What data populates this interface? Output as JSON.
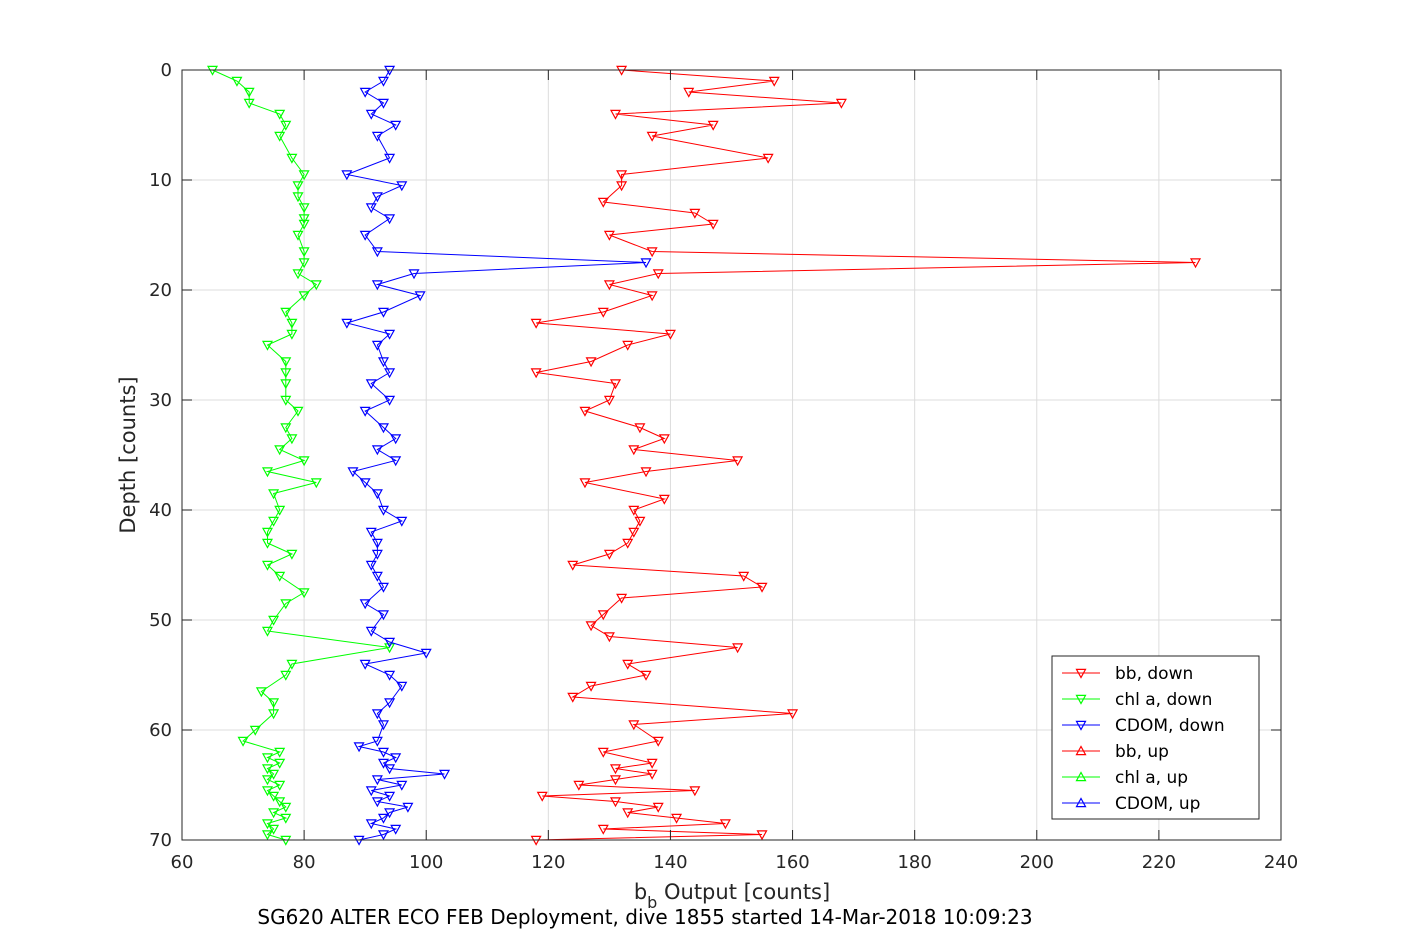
{
  "figure": {
    "subtitle": "SG620 ALTER ECO FEB Deployment, dive 1855 started 14-Mar-2018 10:09:23"
  },
  "chart_data": {
    "type": "line",
    "xlabel_main": "b",
    "xlabel_sub": "b",
    "xlabel_rest": " Output [counts]",
    "ylabel": "Depth [counts]",
    "xlim": [
      60,
      240
    ],
    "ylim": [
      0,
      70
    ],
    "y_reversed": true,
    "grid": true,
    "legend_position": "bottom-right",
    "x_ticks": [
      "60",
      "80",
      "100",
      "120",
      "140",
      "160",
      "180",
      "200",
      "220",
      "240"
    ],
    "y_ticks": [
      "0",
      "10",
      "20",
      "30",
      "40",
      "50",
      "60",
      "70"
    ],
    "series": [
      {
        "name": "bb, down",
        "color": "#ff0000",
        "marker": "triangle-down",
        "points": [
          [
            132,
            0
          ],
          [
            157,
            1
          ],
          [
            143,
            2
          ],
          [
            168,
            3
          ],
          [
            131,
            4
          ],
          [
            147,
            5
          ],
          [
            137,
            6
          ],
          [
            156,
            8
          ],
          [
            132,
            9.5
          ],
          [
            132,
            10.5
          ],
          [
            129,
            12
          ],
          [
            144,
            13
          ],
          [
            147,
            14
          ],
          [
            130,
            15
          ],
          [
            137,
            16.5
          ],
          [
            226,
            17.5
          ],
          [
            138,
            18.5
          ],
          [
            130,
            19.5
          ],
          [
            137,
            20.5
          ],
          [
            129,
            22
          ],
          [
            118,
            23
          ],
          [
            140,
            24
          ],
          [
            133,
            25
          ],
          [
            127,
            26.5
          ],
          [
            118,
            27.5
          ],
          [
            131,
            28.5
          ],
          [
            130,
            30
          ],
          [
            126,
            31
          ],
          [
            135,
            32.5
          ],
          [
            139,
            33.5
          ],
          [
            134,
            34.5
          ],
          [
            151,
            35.5
          ],
          [
            136,
            36.5
          ],
          [
            126,
            37.5
          ],
          [
            139,
            39
          ],
          [
            134,
            40
          ],
          [
            135,
            41
          ],
          [
            134,
            42
          ],
          [
            133,
            43
          ],
          [
            130,
            44
          ],
          [
            124,
            45
          ],
          [
            152,
            46
          ],
          [
            155,
            47
          ],
          [
            132,
            48
          ],
          [
            129,
            49.5
          ],
          [
            127,
            50.5
          ],
          [
            130,
            51.5
          ],
          [
            151,
            52.5
          ],
          [
            133,
            54
          ],
          [
            136,
            55
          ],
          [
            127,
            56
          ],
          [
            124,
            57
          ],
          [
            160,
            58.5
          ],
          [
            134,
            59.5
          ],
          [
            138,
            61
          ],
          [
            129,
            62
          ],
          [
            137,
            63
          ],
          [
            131,
            63.5
          ],
          [
            137,
            64
          ],
          [
            131,
            64.5
          ],
          [
            125,
            65
          ],
          [
            144,
            65.5
          ],
          [
            119,
            66
          ],
          [
            131,
            66.5
          ],
          [
            138,
            67
          ],
          [
            133,
            67.5
          ],
          [
            141,
            68
          ],
          [
            149,
            68.5
          ],
          [
            129,
            69
          ],
          [
            155,
            69.5
          ],
          [
            118,
            70
          ]
        ]
      },
      {
        "name": "chl a, down",
        "color": "#00ff00",
        "marker": "triangle-down",
        "points": [
          [
            65,
            0
          ],
          [
            69,
            1
          ],
          [
            71,
            2
          ],
          [
            71,
            3
          ],
          [
            76,
            4
          ],
          [
            77,
            5
          ],
          [
            76,
            6
          ],
          [
            78,
            8
          ],
          [
            80,
            9.5
          ],
          [
            79,
            10.5
          ],
          [
            79,
            11.5
          ],
          [
            80,
            12.5
          ],
          [
            80,
            13.5
          ],
          [
            80,
            14
          ],
          [
            79,
            15
          ],
          [
            80,
            16.5
          ],
          [
            80,
            17.5
          ],
          [
            79,
            18.5
          ],
          [
            82,
            19.5
          ],
          [
            80,
            20.5
          ],
          [
            77,
            22
          ],
          [
            78,
            23
          ],
          [
            78,
            24
          ],
          [
            74,
            25
          ],
          [
            77,
            26.5
          ],
          [
            77,
            27.5
          ],
          [
            77,
            28.5
          ],
          [
            77,
            30
          ],
          [
            79,
            31
          ],
          [
            77,
            32.5
          ],
          [
            78,
            33.5
          ],
          [
            76,
            34.5
          ],
          [
            80,
            35.5
          ],
          [
            74,
            36.5
          ],
          [
            82,
            37.5
          ],
          [
            75,
            38.5
          ],
          [
            76,
            40
          ],
          [
            75,
            41
          ],
          [
            74,
            42
          ],
          [
            74,
            43
          ],
          [
            78,
            44
          ],
          [
            74,
            45
          ],
          [
            76,
            46
          ],
          [
            80,
            47.5
          ],
          [
            77,
            48.5
          ],
          [
            75,
            50
          ],
          [
            74,
            51
          ],
          [
            94,
            52.5
          ],
          [
            78,
            54
          ],
          [
            77,
            55
          ],
          [
            73,
            56.5
          ],
          [
            75,
            57.5
          ],
          [
            75,
            58.5
          ],
          [
            72,
            60
          ],
          [
            70,
            61
          ],
          [
            76,
            62
          ],
          [
            74,
            62.5
          ],
          [
            76,
            63
          ],
          [
            74,
            63.5
          ],
          [
            75,
            64
          ],
          [
            74,
            64.5
          ],
          [
            76,
            65
          ],
          [
            74,
            65.5
          ],
          [
            75,
            66
          ],
          [
            76,
            66.5
          ],
          [
            77,
            67
          ],
          [
            75,
            67.5
          ],
          [
            77,
            68
          ],
          [
            74,
            68.5
          ],
          [
            75,
            69
          ],
          [
            74,
            69.5
          ],
          [
            77,
            70
          ]
        ]
      },
      {
        "name": "CDOM, down",
        "color": "#0000ff",
        "marker": "triangle-down",
        "points": [
          [
            94,
            0
          ],
          [
            93,
            1
          ],
          [
            90,
            2
          ],
          [
            93,
            3
          ],
          [
            91,
            4
          ],
          [
            95,
            5
          ],
          [
            92,
            6
          ],
          [
            94,
            8
          ],
          [
            87,
            9.5
          ],
          [
            96,
            10.5
          ],
          [
            92,
            11.5
          ],
          [
            91,
            12.5
          ],
          [
            94,
            13.5
          ],
          [
            90,
            15
          ],
          [
            92,
            16.5
          ],
          [
            136,
            17.5
          ],
          [
            98,
            18.5
          ],
          [
            92,
            19.5
          ],
          [
            99,
            20.5
          ],
          [
            93,
            22
          ],
          [
            87,
            23
          ],
          [
            94,
            24
          ],
          [
            92,
            25
          ],
          [
            93,
            26.5
          ],
          [
            94,
            27.5
          ],
          [
            91,
            28.5
          ],
          [
            94,
            30
          ],
          [
            90,
            31
          ],
          [
            93,
            32.5
          ],
          [
            95,
            33.5
          ],
          [
            92,
            34.5
          ],
          [
            95,
            35.5
          ],
          [
            88,
            36.5
          ],
          [
            90,
            37.5
          ],
          [
            92,
            38.5
          ],
          [
            93,
            40
          ],
          [
            96,
            41
          ],
          [
            91,
            42
          ],
          [
            92,
            43
          ],
          [
            92,
            44
          ],
          [
            91,
            45
          ],
          [
            92,
            46
          ],
          [
            93,
            47
          ],
          [
            90,
            48.5
          ],
          [
            93,
            49.5
          ],
          [
            91,
            51
          ],
          [
            94,
            52
          ],
          [
            100,
            53
          ],
          [
            90,
            54
          ],
          [
            94,
            55
          ],
          [
            96,
            56
          ],
          [
            94,
            57.5
          ],
          [
            92,
            58.5
          ],
          [
            93,
            59.5
          ],
          [
            92,
            61
          ],
          [
            89,
            61.5
          ],
          [
            93,
            62
          ],
          [
            95,
            62.5
          ],
          [
            93,
            63
          ],
          [
            94,
            63.5
          ],
          [
            103,
            64
          ],
          [
            92,
            64.5
          ],
          [
            96,
            65
          ],
          [
            91,
            65.5
          ],
          [
            94,
            66
          ],
          [
            92,
            66.5
          ],
          [
            97,
            67
          ],
          [
            94,
            67.5
          ],
          [
            93,
            68
          ],
          [
            91,
            68.5
          ],
          [
            95,
            69
          ],
          [
            93,
            69.5
          ],
          [
            89,
            70
          ]
        ]
      },
      {
        "name": "bb, up",
        "color": "#ff0000",
        "marker": "triangle-up",
        "points": []
      },
      {
        "name": "chl a, up",
        "color": "#00ff00",
        "marker": "triangle-up",
        "points": []
      },
      {
        "name": "CDOM, up",
        "color": "#0000ff",
        "marker": "triangle-up",
        "points": []
      }
    ]
  }
}
